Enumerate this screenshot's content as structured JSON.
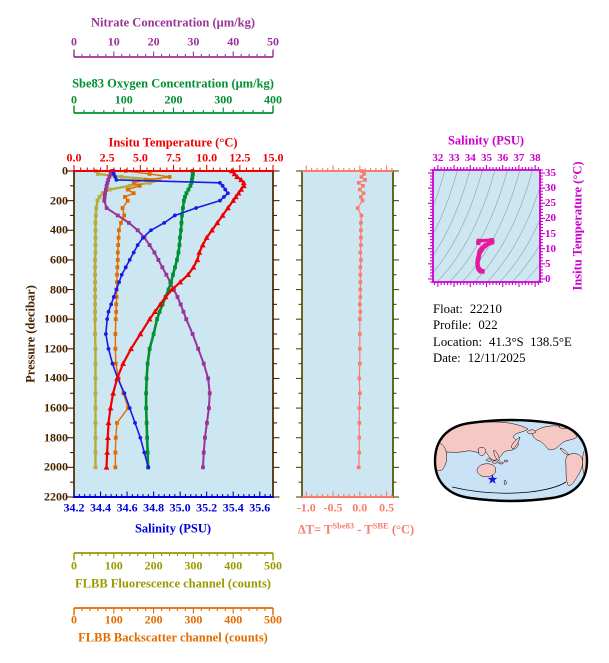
{
  "palette": {
    "background": "#ffffff",
    "plot_bg": "#cde7f2",
    "frame_brown": "#472400",
    "nitrate": "#993399",
    "oxygen": "#009030",
    "temperature": "#ee0000",
    "salinity": "#0000dd",
    "salinity_curve": "#1a1ae6",
    "fluorescence": "#9a9a00",
    "fluorescence_curve": "#b4ae3c",
    "backscatter": "#e06c00",
    "delta": "#fa7a6e",
    "delta_frame": "#4a5200",
    "ts_frame": "#cc00cc",
    "ts_curve": "#e8189e",
    "ts_contour": "#9aa8b0",
    "map_land": "#f5c8c4",
    "map_ocean": "#c9e2f5",
    "map_outline": "#000000",
    "marker_star": "#1414e6",
    "info_text": "#000000"
  },
  "axes": {
    "nitrate": {
      "title": "Nitrate Concentration (μm/kg)",
      "tick_labels": [
        "0",
        "10",
        "20",
        "30",
        "40",
        "50"
      ],
      "min": 0,
      "max": 50
    },
    "oxygen": {
      "title": "Sbe83 Oxygen Concentration (μm/kg)",
      "tick_labels": [
        "0",
        "100",
        "200",
        "300",
        "400"
      ],
      "min": 0,
      "max": 400
    },
    "temperature": {
      "title": "Insitu Temperature (°C)",
      "tick_labels": [
        "0.0",
        "2.5",
        "5.0",
        "7.5",
        "10.0",
        "12.5",
        "15.0"
      ],
      "min": 0,
      "max": 15
    },
    "pressure": {
      "title": "Pressure (decibar)",
      "tick_labels": [
        "0",
        "200",
        "400",
        "600",
        "800",
        "1000",
        "1200",
        "1400",
        "1600",
        "1800",
        "2000",
        "2200"
      ],
      "min": 0,
      "max": 2200
    },
    "salinity": {
      "title": "Salinity (PSU)",
      "tick_labels": [
        "34.2",
        "34.4",
        "34.6",
        "34.8",
        "35.0",
        "35.2",
        "35.4",
        "35.6"
      ],
      "min": 34.2,
      "max": 35.7
    },
    "fluorescence": {
      "title": "FLBB Fluorescence channel (counts)",
      "tick_labels": [
        "0",
        "100",
        "200",
        "300",
        "400",
        "500"
      ],
      "min": 0,
      "max": 500
    },
    "backscatter": {
      "title": "FLBB Backscatter channel (counts)",
      "tick_labels": [
        "0",
        "100",
        "200",
        "300",
        "400",
        "500"
      ],
      "min": 0,
      "max": 500
    },
    "delta_t": {
      "title_prefix": "ΔT= T",
      "title_sup1": "Sbe83",
      "title_mid": " - T",
      "title_sup2": "SBE",
      "title_suffix": " (°C)",
      "tick_labels": [
        "-1.0",
        "-0.5",
        "0.0",
        "0.5"
      ],
      "min": -1.08,
      "max": 0.62
    },
    "ts_salinity": {
      "title": "Salinity (PSU)",
      "tick_labels": [
        "32",
        "33",
        "34",
        "35",
        "36",
        "37",
        "38"
      ],
      "min": 31.7,
      "max": 38.3
    },
    "ts_temperature": {
      "title": "Insitu Temperature (°C)",
      "tick_labels": [
        "0",
        "5",
        "10",
        "15",
        "20",
        "25",
        "30",
        "35"
      ],
      "min": -1,
      "max": 36
    }
  },
  "info": {
    "float_label": "Float:",
    "float_value": "22210",
    "profile_label": "Profile:",
    "profile_value": "022",
    "location_label": "Location:",
    "location_value": "41.3°S  138.5°E",
    "date_label": "Date:",
    "date_value": "12/11/2025"
  },
  "chart_data": [
    {
      "id": "profiles",
      "type": "line",
      "ylabel": "Pressure (decibar)",
      "ylim": [
        0,
        2200
      ],
      "pressure_levels": [
        0,
        20,
        40,
        60,
        80,
        100,
        125,
        150,
        175,
        200,
        250,
        300,
        350,
        400,
        450,
        500,
        550,
        600,
        650,
        700,
        750,
        800,
        850,
        900,
        950,
        1000,
        1100,
        1200,
        1300,
        1400,
        1500,
        1600,
        1700,
        1800,
        1900,
        2000
      ],
      "series": [
        {
          "name": "FLBB Fluorescence channel (counts)",
          "axis": "fluorescence",
          "color_key": "fluorescence_curve",
          "marker": "square",
          "values": [
            55,
            60,
            120,
            215,
            190,
            140,
            90,
            72,
            64,
            59,
            56,
            55,
            54,
            54,
            54,
            54,
            54,
            53,
            53,
            53,
            53,
            53,
            53,
            53,
            53,
            53,
            53,
            54,
            54,
            54,
            54,
            54,
            54,
            54,
            54,
            54
          ]
        },
        {
          "name": "FLBB Backscatter channel (counts)",
          "axis": "backscatter",
          "color_key": "backscatter",
          "marker": "square",
          "values": [
            130,
            190,
            240,
            180,
            150,
            165,
            135,
            150,
            128,
            135,
            122,
            126,
            118,
            113,
            112,
            111,
            110,
            110,
            109,
            108,
            108,
            107,
            107,
            106,
            106,
            105,
            104,
            104,
            105,
            112,
            124,
            136,
            108,
            105,
            104,
            104
          ]
        },
        {
          "name": "Nitrate Concentration (μm/kg)",
          "axis": "nitrate",
          "color_key": "nitrate",
          "marker": "square",
          "values": [
            9.5,
            9.2,
            8.9,
            8.6,
            8.4,
            8.2,
            8.0,
            7.8,
            7.7,
            7.6,
            8.2,
            11.0,
            13.8,
            16.0,
            17.7,
            19.0,
            20.2,
            21.2,
            22.2,
            23.2,
            24.2,
            25.1,
            26.0,
            26.8,
            27.5,
            28.2,
            29.8,
            31.2,
            32.6,
            33.7,
            34.1,
            33.9,
            33.4,
            32.9,
            32.6,
            32.4
          ]
        },
        {
          "name": "Sbe83 Oxygen Concentration (μm/kg)",
          "axis": "oxygen",
          "color_key": "oxygen",
          "marker": "square",
          "values": [
            238,
            239,
            238,
            237,
            236,
            234,
            230,
            226,
            223,
            221,
            219,
            217,
            216,
            215,
            213,
            212,
            210,
            207,
            203,
            199,
            195,
            190,
            184,
            178,
            172,
            167,
            160,
            152,
            148,
            146,
            145,
            145,
            146,
            147,
            148,
            149
          ]
        },
        {
          "name": "Salinity (PSU)",
          "axis": "salinity",
          "color_key": "salinity_curve",
          "marker": "circle",
          "values": [
            34.5,
            34.5,
            34.51,
            34.52,
            35.3,
            35.32,
            35.34,
            35.36,
            35.33,
            35.3,
            35.12,
            34.96,
            34.88,
            34.78,
            34.72,
            34.68,
            34.65,
            34.62,
            34.59,
            34.56,
            34.54,
            34.52,
            34.5,
            34.48,
            34.46,
            34.45,
            34.44,
            34.46,
            34.49,
            34.53,
            34.58,
            34.62,
            34.66,
            34.7,
            34.73,
            34.76
          ]
        },
        {
          "name": "Insitu Temperature (°C)",
          "axis": "temperature",
          "color_key": "temperature",
          "marker": "triangle",
          "values": [
            11.9,
            12.1,
            12.3,
            12.6,
            12.8,
            12.8,
            12.6,
            12.4,
            12.2,
            12.0,
            11.6,
            11.2,
            10.8,
            10.4,
            10.0,
            9.7,
            9.45,
            9.3,
            9.0,
            8.6,
            8.0,
            7.4,
            6.9,
            6.5,
            6.1,
            5.7,
            5.0,
            4.3,
            3.7,
            3.25,
            2.95,
            2.75,
            2.6,
            2.55,
            2.5,
            2.45
          ]
        }
      ]
    },
    {
      "id": "delta_t",
      "type": "line",
      "xlabel": "ΔT= T^Sbe83 - T^SBE (°C)",
      "xlim": [
        -1.08,
        0.62
      ],
      "ylim": [
        0,
        2200
      ],
      "pressure_levels": [
        0,
        20,
        40,
        60,
        80,
        100,
        125,
        150,
        175,
        200,
        250,
        300,
        350,
        400,
        450,
        500,
        550,
        600,
        650,
        700,
        750,
        800,
        850,
        900,
        950,
        1000,
        1100,
        1200,
        1300,
        1400,
        1500,
        1600,
        1700,
        1800,
        1900,
        2000
      ],
      "series": [
        {
          "name": "ΔT",
          "color_key": "delta",
          "marker": "square",
          "values": [
            0.04,
            0.08,
            0.03,
            0.1,
            -0.02,
            0.06,
            0.0,
            0.07,
            0.02,
            0.05,
            -0.04,
            0.03,
            0.02,
            0.02,
            0.02,
            0.02,
            0.01,
            0.02,
            0.01,
            0.01,
            0.01,
            0.01,
            0.01,
            0.0,
            0.01,
            0.0,
            0.0,
            0.0,
            0.0,
            -0.01,
            0.0,
            -0.01,
            -0.01,
            -0.01,
            -0.01,
            -0.02
          ]
        }
      ]
    },
    {
      "id": "ts_diagram",
      "type": "scatter",
      "xlabel": "Salinity (PSU)",
      "ylabel": "Insitu Temperature (°C)",
      "xlim": [
        31.7,
        38.3
      ],
      "ylim": [
        -1,
        36
      ],
      "color_key": "ts_curve",
      "note": "Temperature-vs-salinity curve derived from the temperature and salinity profile series above; background shows density isolines."
    }
  ]
}
